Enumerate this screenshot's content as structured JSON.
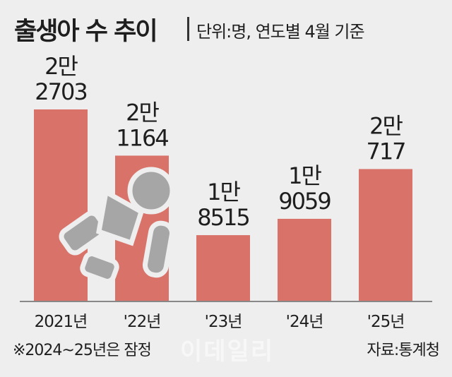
{
  "header": {
    "title": "출생아 수 추이",
    "unit": "단위:명, 연도별 4월 기준"
  },
  "footer": {
    "note": "※2024~25년은 잠정",
    "source": "자료:통계청",
    "watermark": "이데일리"
  },
  "icon": "baby-crawling-icon",
  "colors": {
    "bar": "#d9736a",
    "baseline": "#888888",
    "background": "#eeeeee",
    "icon": "#a6a6a6"
  },
  "chart_data": {
    "type": "bar",
    "categories": [
      "2021년",
      "'22년",
      "'23년",
      "'24년",
      "'25년"
    ],
    "values": [
      22703,
      21164,
      18515,
      19059,
      20717
    ],
    "data_labels": [
      [
        "2만",
        "2703"
      ],
      [
        "2만",
        "1164"
      ],
      [
        "1만",
        "8515"
      ],
      [
        "1만",
        "9059"
      ],
      [
        "2만",
        "717"
      ]
    ],
    "title": "출생아 수 추이",
    "grid": false,
    "legend": "none"
  }
}
